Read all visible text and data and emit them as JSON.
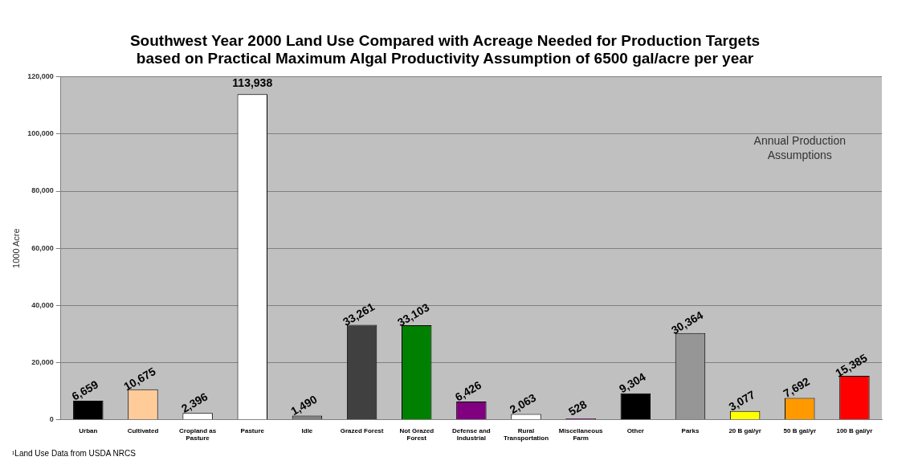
{
  "chart_data": {
    "type": "bar",
    "title": [
      "Southwest Year 2000 Land Use Compared with Acreage Needed for Production Targets",
      "based on Practical Maximum Algal Productivity Assumption of 6500 gal/acre per year"
    ],
    "ylabel": "1000 Acre",
    "categories": [
      "Urban",
      "Cultivated",
      "Cropland as Pasture",
      "Pasture",
      "Idle",
      "Grazed Forest",
      "Not Grazed Forest",
      "Defense and Industrial",
      "Rural Transportation",
      "Miscellaneous Farm",
      "Other",
      "Parks",
      "20 B gal/yr",
      "50 B gal/yr",
      "100 B gal/yr"
    ],
    "values": [
      6659,
      10675,
      2396,
      113938,
      1490,
      33261,
      33103,
      6426,
      2063,
      528,
      9304,
      30364,
      3077,
      7692,
      15385
    ],
    "value_labels": [
      "6,659",
      "10,675",
      "2,396",
      "113,938",
      "1,490",
      "33,261",
      "33,103",
      "6,426",
      "2,063",
      "528",
      "9,304",
      "30,364",
      "3,077",
      "7,692",
      "15,385"
    ],
    "colors": [
      "#000000",
      "#ffcc99",
      "#ffffff",
      "#ffffff",
      "#808080",
      "#404040",
      "#008000",
      "#800080",
      "#ffffff",
      "#800080",
      "#000000",
      "#969696",
      "#ffff00",
      "#ff9900",
      "#ff0000"
    ],
    "ylim": [
      0,
      120000
    ],
    "yticks": [
      {
        "value": 0,
        "label": "0"
      },
      {
        "value": 20000,
        "label": "20,000"
      },
      {
        "value": 40000,
        "label": "40,000"
      },
      {
        "value": 60000,
        "label": "60,000"
      },
      {
        "value": 80000,
        "label": "80,000"
      },
      {
        "value": 100000,
        "label": "100,000"
      },
      {
        "value": 120000,
        "label": "120,000"
      }
    ],
    "grid": "y",
    "legend": false,
    "annotations": [
      "Annual Production Assumptions",
      "¹Land Use Data from USDA NRCS"
    ]
  }
}
